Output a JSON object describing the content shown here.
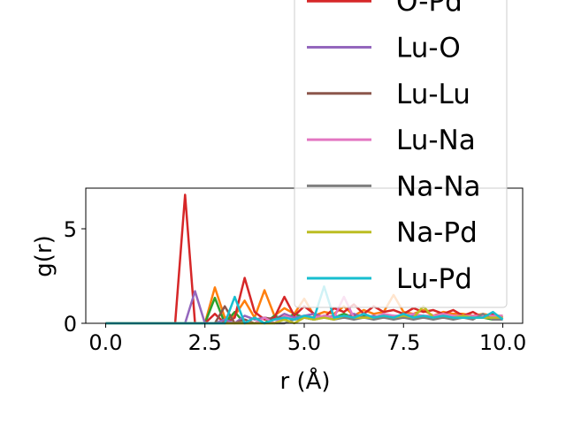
{
  "chart_data": {
    "type": "line",
    "xlabel": "r (Å)",
    "ylabel": "g(r)",
    "x": [
      0,
      0.25,
      0.5,
      0.75,
      1,
      1.25,
      1.5,
      1.75,
      2,
      2.25,
      2.5,
      2.75,
      3,
      3.25,
      3.5,
      3.75,
      4,
      4.25,
      4.5,
      4.75,
      5,
      5.25,
      5.5,
      5.75,
      6,
      6.25,
      6.5,
      6.75,
      7,
      7.25,
      7.5,
      7.75,
      8,
      8.25,
      8.5,
      8.75,
      9,
      9.25,
      9.5,
      9.75,
      10
    ],
    "series": [
      {
        "color": "#ff7f0e",
        "values": [
          0,
          0,
          0,
          0,
          0,
          0,
          0,
          0,
          0,
          0,
          0,
          1.9,
          0.3,
          0.4,
          1.2,
          0.3,
          1.75,
          0.4,
          0.8,
          0.5,
          1.3,
          0.4,
          0.6,
          0.5,
          0.9,
          0.4,
          0.7,
          0.5,
          0.6,
          1.5,
          0.6,
          0.5,
          0.7,
          0.4,
          0.6,
          0.5,
          0.5,
          0.4,
          0.5,
          0.4,
          0.4
        ]
      },
      {
        "color": "#2ca02c",
        "values": [
          0,
          0,
          0,
          0,
          0,
          0,
          0,
          0,
          0,
          0,
          0,
          1.35,
          0,
          0.6,
          0,
          0.3,
          0,
          0.4,
          0.2,
          0.5,
          0.3,
          0.2,
          0.4,
          0.3,
          0.5,
          0.3,
          0.4,
          0.3,
          0.4,
          0.3,
          0.3,
          0.4,
          0.3,
          0.3,
          0.4,
          0.3,
          0.3,
          0.3,
          0.3,
          0.2,
          0.3
        ]
      },
      {
        "name": "O-Pd",
        "color": "#d62728",
        "values": [
          0,
          0,
          0,
          0,
          0,
          0,
          0,
          0,
          6.8,
          0,
          0,
          0.5,
          0,
          0.3,
          2.4,
          0.6,
          0.2,
          0.3,
          1.4,
          0.4,
          0.9,
          0.5,
          0.3,
          0.8,
          0.6,
          1.0,
          0.5,
          0.9,
          0.6,
          0.7,
          0.5,
          0.8,
          0.6,
          0.7,
          0.5,
          0.7,
          0.4,
          0.6,
          0.3,
          0.5,
          0.3
        ]
      },
      {
        "name": "Lu-O",
        "color": "#9467bd",
        "values": [
          0,
          0,
          0,
          0,
          0,
          0,
          0,
          0,
          0,
          1.7,
          0,
          0,
          0.2,
          0,
          0.4,
          0.2,
          0.3,
          0.2,
          0.5,
          0.3,
          0.4,
          0.5,
          0.3,
          0.4,
          0.3,
          0.5,
          0.3,
          0.4,
          0.3,
          0.4,
          0.3,
          0.4,
          0.3,
          0.4,
          0.3,
          0.4,
          0.3,
          0.3,
          0.3,
          0.3,
          0.3
        ]
      },
      {
        "name": "Lu-Lu",
        "color": "#8c564b",
        "values": [
          0,
          0,
          0,
          0,
          0,
          0,
          0,
          0,
          0,
          0,
          0,
          0,
          0.9,
          0,
          0.2,
          0,
          0.3,
          0.2,
          0.4,
          0.2,
          0.3,
          0.2,
          0.4,
          0.3,
          0.3,
          0.4,
          0.3,
          0.3,
          0.4,
          0.3,
          0.3,
          0.3,
          0.4,
          0.3,
          0.3,
          0.3,
          0.3,
          0.3,
          0.3,
          0.3,
          0.3
        ]
      },
      {
        "name": "Lu-Na",
        "color": "#e377c2",
        "values": [
          0,
          0,
          0,
          0,
          0,
          0,
          0,
          0,
          0,
          0,
          0,
          0,
          0,
          0,
          0,
          0,
          0.3,
          0,
          0.4,
          0.2,
          0.3,
          0.3,
          0.4,
          0.3,
          1.4,
          0.3,
          0.5,
          0.3,
          0.5,
          0.4,
          0.4,
          0.5,
          0.4,
          0.4,
          0.5,
          0.4,
          0.4,
          0.4,
          0.4,
          0.4,
          0.4
        ]
      },
      {
        "name": "Na-Na",
        "color": "#7f7f7f",
        "values": [
          0,
          0,
          0,
          0,
          0,
          0,
          0,
          0,
          0,
          0,
          0,
          0,
          0,
          0,
          0,
          0,
          0,
          0,
          0,
          0.2,
          0.3,
          0.2,
          0.3,
          0.2,
          0.3,
          0.2,
          0.3,
          0.2,
          0.3,
          0.2,
          0.3,
          0.2,
          0.3,
          0.2,
          0.3,
          0.2,
          0.3,
          0.2,
          0.5,
          0.2,
          0.2
        ]
      },
      {
        "name": "Na-Pd",
        "color": "#bcbd22",
        "values": [
          0,
          0,
          0,
          0,
          0,
          0,
          0,
          0,
          0,
          0,
          0,
          0,
          0,
          0,
          0,
          0,
          0,
          0,
          0.2,
          0,
          0.3,
          0.2,
          0.3,
          0.2,
          0.4,
          0.3,
          0.3,
          0.3,
          0.4,
          0.3,
          0.4,
          0.3,
          0.9,
          0.3,
          0.4,
          0.3,
          0.4,
          0.3,
          0.3,
          0.3,
          0.3
        ]
      },
      {
        "name": "Lu-Pd",
        "color": "#17becf",
        "values": [
          0,
          0,
          0,
          0,
          0,
          0,
          0,
          0,
          0,
          0,
          0,
          0,
          0,
          1.4,
          0,
          0.3,
          0,
          0.2,
          0.3,
          0.2,
          0.4,
          0.3,
          1.95,
          0.3,
          0.4,
          0.3,
          0.5,
          0.3,
          0.4,
          0.3,
          0.5,
          0.3,
          0.4,
          0.3,
          0.4,
          0.3,
          0.3,
          0.3,
          0.3,
          0.6,
          0.2
        ]
      }
    ],
    "xlim": [
      -0.5,
      10.5
    ],
    "xticks": [
      {
        "value": 0,
        "label": "0.0"
      },
      {
        "value": 2.5,
        "label": "2.5"
      },
      {
        "value": 5,
        "label": "5.0"
      },
      {
        "value": 7.5,
        "label": "7.5"
      },
      {
        "value": 10,
        "label": "10.0"
      }
    ],
    "ylim": [
      0,
      7.15
    ],
    "yticks": [
      0,
      5
    ],
    "grid": false,
    "legend": "upper right"
  }
}
